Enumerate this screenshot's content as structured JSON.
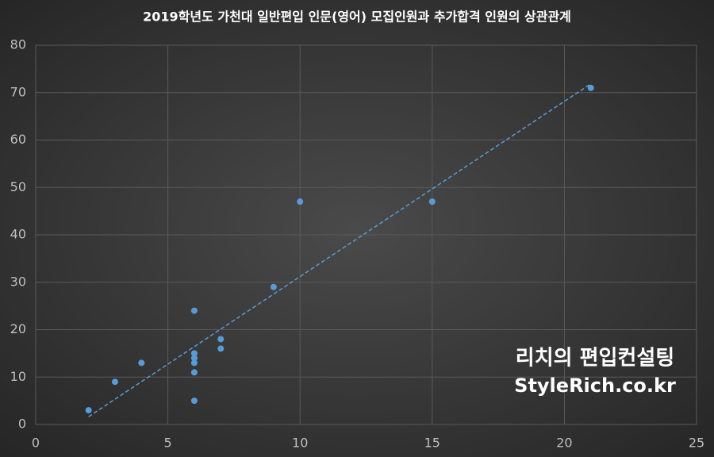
{
  "chart_data": {
    "type": "scatter",
    "title": "2019학년도 가천대 일반편입 인문(영어) 모집인원과 추가합격 인원의 상관관계",
    "x": [
      2,
      3,
      4,
      6,
      6,
      6,
      6,
      6,
      6,
      7,
      7,
      9,
      10,
      15,
      21
    ],
    "series": [
      {
        "name": "추가합격",
        "color": "#5b9bd5",
        "values": [
          3,
          9,
          13,
          24,
          15,
          14,
          13,
          11,
          5,
          18,
          16,
          29,
          47,
          47,
          71
        ]
      }
    ],
    "xlim": [
      0,
      25
    ],
    "xticks": [
      0,
      5,
      10,
      15,
      20,
      25
    ],
    "ylim": [
      0,
      80
    ],
    "yticks": [
      0,
      10,
      20,
      30,
      40,
      50,
      60,
      70,
      80
    ],
    "grid": true,
    "trendline": "linear",
    "watermark": [
      "리치의 편입컨설팅",
      "StyleRich.co.kr"
    ]
  }
}
